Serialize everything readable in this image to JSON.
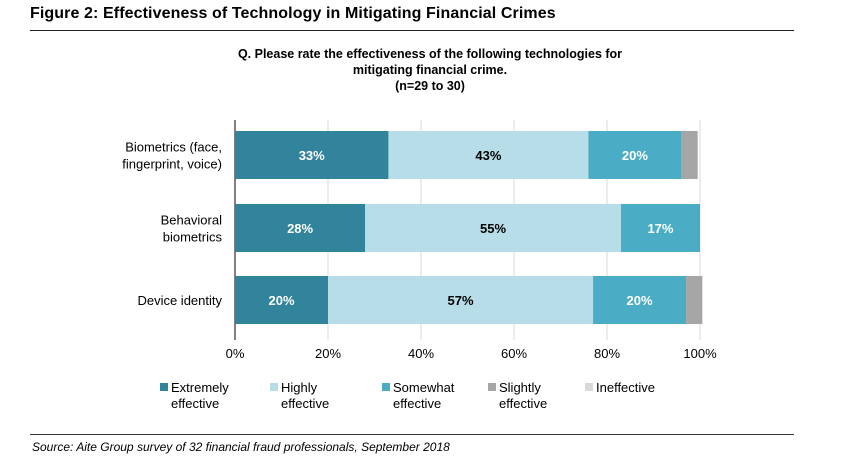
{
  "figure": {
    "title": "Figure 2: Effectiveness of Technology in Mitigating Financial Crimes",
    "source": "Source: Aite Group survey of 32 financial fraud professionals, September 2018"
  },
  "chart_data": {
    "type": "bar",
    "orientation": "horizontal",
    "stacked": true,
    "title_lines": [
      "Q. Please rate the effectiveness of the following technologies for",
      "mitigating financial crime.",
      "(n=29 to 30)"
    ],
    "categories": [
      [
        "Biometrics (face,",
        "fingerprint, voice)"
      ],
      [
        "Behavioral",
        "biometrics"
      ],
      [
        "Device identity"
      ]
    ],
    "series": [
      {
        "name": [
          "Extremely",
          "effective"
        ],
        "color": "#31849b",
        "label_color": "#ffffff",
        "values": [
          33,
          28,
          20
        ],
        "labels": [
          "33%",
          "28%",
          "20%"
        ]
      },
      {
        "name": [
          "Highly",
          "effective"
        ],
        "color": "#b7dee8",
        "label_color": "#000000",
        "values": [
          43,
          55,
          57
        ],
        "labels": [
          "43%",
          "55%",
          "57%"
        ]
      },
      {
        "name": [
          "Somewhat",
          "effective"
        ],
        "color": "#4bacc6",
        "label_color": "#ffffff",
        "values": [
          20,
          17,
          20
        ],
        "labels": [
          "20%",
          "17%",
          "20%"
        ]
      },
      {
        "name": [
          "Slightly",
          "effective"
        ],
        "color": "#a6a6a6",
        "label_color": "#000000",
        "values": [
          3.5,
          0,
          3.5
        ],
        "labels": [
          "",
          "",
          ""
        ]
      },
      {
        "name": [
          "Ineffective"
        ],
        "color": "#d9d9d9",
        "label_color": "#000000",
        "values": [
          0,
          0,
          0
        ],
        "labels": [
          "",
          "",
          ""
        ]
      }
    ],
    "xlim": [
      0,
      100
    ],
    "xticks": [
      "0%",
      "20%",
      "40%",
      "60%",
      "80%",
      "100%"
    ],
    "grid": true,
    "legend_position": "bottom"
  }
}
